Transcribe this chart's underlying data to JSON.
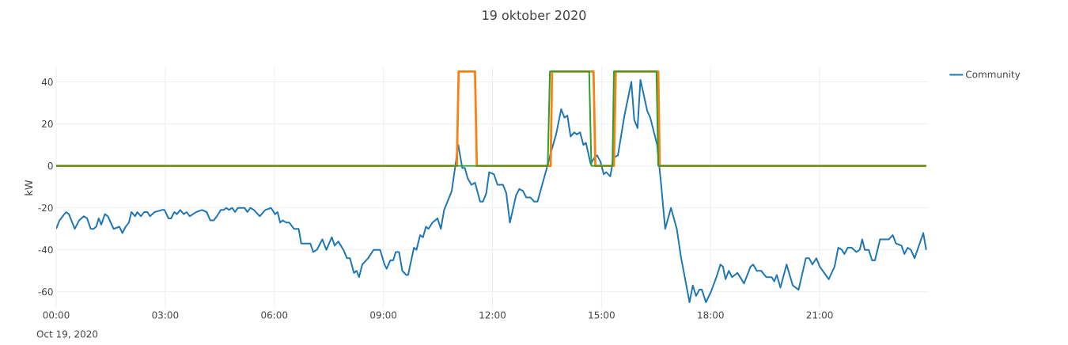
{
  "chart_data": {
    "type": "line",
    "title": "19 oktober 2020",
    "ylabel": "kW",
    "xlim": [
      0,
      24
    ],
    "ylim": [
      -68,
      47
    ],
    "xticks": [
      {
        "value": 0,
        "label": "00:00"
      },
      {
        "value": 3,
        "label": "03:00"
      },
      {
        "value": 6,
        "label": "06:00"
      },
      {
        "value": 9,
        "label": "09:00"
      },
      {
        "value": 12,
        "label": "12:00"
      },
      {
        "value": 15,
        "label": "15:00"
      },
      {
        "value": 18,
        "label": "18:00"
      },
      {
        "value": 21,
        "label": "21:00"
      }
    ],
    "yticks": [
      -60,
      -40,
      -20,
      0,
      20,
      40
    ],
    "grid": true,
    "legend": "top right",
    "marker": "none",
    "annotations": [
      "Oct 19, 2020"
    ],
    "series": [
      {
        "name": "Community",
        "color": "#1f77b4",
        "x": [
          0,
          0.09,
          0.27,
          0.35,
          0.51,
          0.63,
          0.76,
          0.85,
          0.95,
          1.03,
          1.1,
          1.17,
          1.24,
          1.34,
          1.42,
          1.58,
          1.74,
          1.82,
          1.91,
          2.0,
          2.07,
          2.17,
          2.23,
          2.33,
          2.42,
          2.51,
          2.58,
          2.71,
          2.91,
          2.98,
          3.09,
          3.16,
          3.25,
          3.32,
          3.41,
          3.51,
          3.59,
          3.67,
          3.85,
          4.01,
          4.14,
          4.24,
          4.33,
          4.42,
          4.53,
          4.61,
          4.68,
          4.75,
          4.84,
          4.92,
          5.0,
          5.1,
          5.18,
          5.26,
          5.34,
          5.44,
          5.6,
          5.75,
          5.91,
          6.02,
          6.09,
          6.16,
          6.23,
          6.33,
          6.41,
          6.54,
          6.67,
          6.74,
          6.99,
          7.07,
          7.17,
          7.32,
          7.43,
          7.58,
          7.66,
          7.76,
          7.9,
          8.0,
          8.08,
          8.19,
          8.26,
          8.33,
          8.42,
          8.58,
          8.73,
          8.91,
          9.03,
          9.09,
          9.19,
          9.27,
          9.34,
          9.43,
          9.52,
          9.63,
          9.68,
          9.84,
          9.91,
          10.01,
          10.09,
          10.17,
          10.24,
          10.35,
          10.49,
          10.58,
          10.67,
          10.88,
          11.06,
          11.17,
          11.24,
          11.32,
          11.42,
          11.52,
          11.66,
          11.74,
          11.83,
          11.91,
          12.04,
          12.14,
          12.29,
          12.38,
          12.48,
          12.65,
          12.74,
          12.84,
          12.93,
          13.04,
          13.15,
          13.24,
          13.51,
          13.6,
          13.75,
          13.89,
          13.98,
          14.06,
          14.15,
          14.25,
          14.32,
          14.41,
          14.5,
          14.57,
          14.7,
          14.81,
          14.88,
          14.97,
          15.06,
          15.13,
          15.24,
          15.33,
          15.45,
          15.63,
          15.82,
          15.9,
          15.99,
          16.07,
          16.26,
          16.34,
          16.53,
          16.64,
          16.75,
          16.91,
          17.07,
          17.18,
          17.42,
          17.51,
          17.6,
          17.69,
          17.76,
          17.87,
          18.01,
          18.16,
          18.27,
          18.34,
          18.41,
          18.5,
          18.59,
          18.74,
          18.92,
          19.1,
          19.17,
          19.27,
          19.39,
          19.53,
          19.68,
          19.75,
          19.82,
          19.92,
          20.09,
          20.26,
          20.42,
          20.62,
          20.71,
          20.8,
          20.91,
          21.0,
          21.25,
          21.41,
          21.51,
          21.61,
          21.68,
          21.77,
          21.88,
          22.01,
          22.1,
          22.17,
          22.24,
          22.35,
          22.44,
          22.52,
          22.66,
          22.9,
          23.01,
          23.1,
          23.25,
          23.33,
          23.42,
          23.51,
          23.61,
          23.85,
          23.93
        ],
        "values": [
          -30,
          -26,
          -22,
          -23,
          -30,
          -26,
          -24,
          -25,
          -30,
          -30,
          -29,
          -25,
          -28,
          -23,
          -24,
          -30,
          -29,
          -32,
          -29,
          -27,
          -22,
          -24,
          -22,
          -24,
          -22,
          -22,
          -24,
          -22,
          -21,
          -21,
          -25,
          -25,
          -22,
          -23,
          -21,
          -23,
          -22,
          -24,
          -22,
          -21,
          -22,
          -26,
          -26,
          -24,
          -21,
          -21,
          -20,
          -21,
          -20,
          -22,
          -20,
          -20,
          -20,
          -22,
          -20,
          -21,
          -24,
          -21,
          -20,
          -23,
          -22,
          -27,
          -26,
          -27,
          -27,
          -30,
          -30,
          -37,
          -37,
          -41,
          -40,
          -35,
          -40,
          -34,
          -38,
          -36,
          -40,
          -44,
          -44,
          -51,
          -50,
          -53,
          -47,
          -44,
          -40,
          -40,
          -47,
          -49,
          -45,
          -45,
          -41,
          -41,
          -50,
          -52,
          -52,
          -39,
          -40,
          -33,
          -34,
          -29,
          -30,
          -27,
          -25,
          -30,
          -21,
          -12,
          10,
          -1,
          -1,
          -6,
          -9,
          -8,
          -17,
          -17,
          -13,
          -3,
          -4,
          -9,
          -9,
          -13,
          -27,
          -14,
          -11,
          -12,
          -15,
          -15,
          -17,
          -17,
          0,
          6,
          15,
          27,
          23,
          24,
          14,
          16,
          15,
          16,
          10,
          11,
          1,
          4,
          5,
          2,
          -4,
          -3,
          -5,
          4,
          5,
          24,
          40,
          22,
          18,
          41,
          26,
          23,
          10,
          -9,
          -30,
          -20,
          -30,
          -43,
          -65,
          -57,
          -62,
          -59,
          -59,
          -65,
          -60,
          -53,
          -47,
          -48,
          -54,
          -50,
          -53,
          -51,
          -56,
          -48,
          -47,
          -50,
          -50,
          -53,
          -53,
          -55,
          -52,
          -58,
          -47,
          -57,
          -59,
          -44,
          -44,
          -47,
          -44,
          -48,
          -54,
          -48,
          -39,
          -40,
          -42,
          -39,
          -39,
          -41,
          -40,
          -35,
          -40,
          -40,
          -45,
          -45,
          -35,
          -35,
          -33,
          -37,
          -38,
          -42,
          -39,
          -40,
          -44,
          -32,
          -40
        ]
      },
      {
        "color": "#ff7f0e",
        "x": [
          0,
          11.02,
          11.07,
          11.52,
          11.57,
          13.6,
          13.64,
          14.78,
          14.83,
          15.34,
          15.39,
          16.56,
          16.6,
          23.93
        ],
        "values": [
          0,
          0,
          45,
          45,
          0,
          0,
          45,
          45,
          0,
          0,
          45,
          45,
          0,
          0
        ]
      },
      {
        "color": "#2ca02c",
        "x": [
          0,
          13.52,
          13.58,
          14.66,
          14.72,
          15.3,
          15.34,
          16.51,
          16.56,
          23.93
        ],
        "values": [
          0,
          0,
          45,
          45,
          0,
          0,
          45,
          45,
          0,
          0
        ]
      }
    ]
  }
}
